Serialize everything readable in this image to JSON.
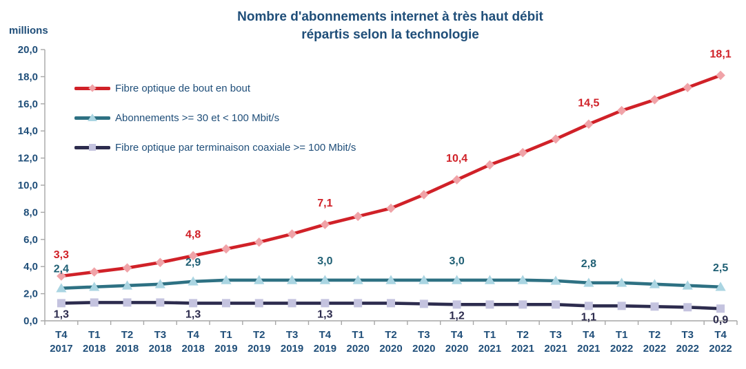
{
  "chart_data": {
    "type": "line",
    "title_line1": "Nombre d'abonnements internet à très haut débit",
    "title_line2": "répartis selon la technologie",
    "ylabel": "millions",
    "ylim": [
      0,
      20
    ],
    "y_tick_step": 2,
    "y_tick_labels": [
      "20,0",
      "18,0",
      "16,0",
      "14,0",
      "12,0",
      "10,0",
      "8,0",
      "6,0",
      "4,0",
      "2,0",
      "0,0"
    ],
    "x_quarters": [
      "T4",
      "T1",
      "T2",
      "T3",
      "T4",
      "T1",
      "T2",
      "T3",
      "T4",
      "T1",
      "T2",
      "T3",
      "T4",
      "T1",
      "T2",
      "T3",
      "T4",
      "T1",
      "T2",
      "T3",
      "T4"
    ],
    "x_years": [
      "2017",
      "2018",
      "2018",
      "2018",
      "2018",
      "2019",
      "2019",
      "2019",
      "2019",
      "2020",
      "2020",
      "2020",
      "2020",
      "2021",
      "2021",
      "2021",
      "2021",
      "2022",
      "2022",
      "2022",
      "2022"
    ],
    "grid": false,
    "legend_position": "top-left-inside",
    "series": [
      {
        "name": "Fibre optique de bout en bout",
        "color": "#D02128",
        "marker": "diamond",
        "marker_color": "#F0A3A8",
        "label_color": "#D02128",
        "label_position": "above",
        "values": [
          3.3,
          3.6,
          3.9,
          4.3,
          4.8,
          5.3,
          5.8,
          6.4,
          7.1,
          7.7,
          8.3,
          9.3,
          10.4,
          11.5,
          12.4,
          13.4,
          14.5,
          15.5,
          16.3,
          17.2,
          18.1
        ],
        "point_labels": {
          "0": "3,3",
          "4": "4,8",
          "8": "7,1",
          "12": "10,4",
          "16": "14,5",
          "20": "18,1"
        }
      },
      {
        "name": "Abonnements >= 30 et < 100 Mbit/s",
        "color": "#2E7183",
        "marker": "triangle",
        "marker_color": "#AAD5E2",
        "label_color": "#1F5F74",
        "label_position": "above",
        "values": [
          2.4,
          2.5,
          2.6,
          2.7,
          2.9,
          3.0,
          3.0,
          3.0,
          3.0,
          3.0,
          3.0,
          3.0,
          3.0,
          3.0,
          3.0,
          2.95,
          2.8,
          2.8,
          2.7,
          2.6,
          2.5
        ],
        "point_labels": {
          "0": "2,4",
          "4": "2,9",
          "8": "3,0",
          "12": "3,0",
          "16": "2,8",
          "20": "2,5"
        }
      },
      {
        "name": "Fibre optique par terminaison coaxiale >= 100 Mbit/s",
        "color": "#2D2C4E",
        "marker": "square",
        "marker_color": "#C4C3DF",
        "label_color": "#2D2C4E",
        "label_position": "below",
        "values": [
          1.3,
          1.35,
          1.35,
          1.35,
          1.3,
          1.3,
          1.3,
          1.3,
          1.3,
          1.3,
          1.3,
          1.25,
          1.2,
          1.2,
          1.2,
          1.2,
          1.1,
          1.1,
          1.05,
          1.0,
          0.9
        ],
        "point_labels": {
          "0": "1,3",
          "4": "1,3",
          "8": "1,3",
          "12": "1,2",
          "16": "1,1",
          "20": "0,9"
        }
      }
    ],
    "colors": {
      "axis": "#A6A6A6",
      "text": "#1F4E79"
    }
  }
}
